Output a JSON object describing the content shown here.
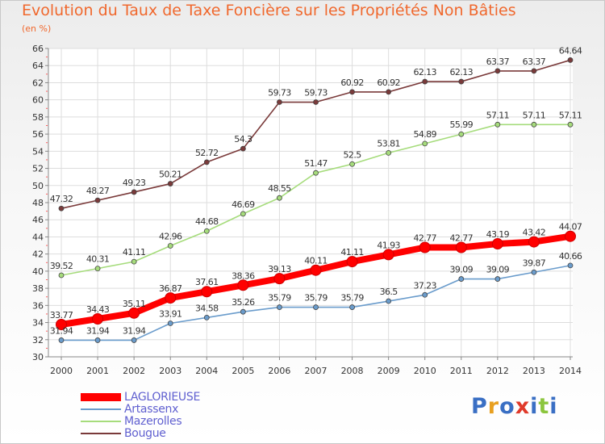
{
  "title": "Evolution du Taux de Taxe Foncière sur les Propriétés Non Bâties",
  "unit_label": "(en %)",
  "logo": {
    "text": "Proxiti",
    "colors": [
      "#3a6fc4",
      "#e8a020",
      "#3a6fc4",
      "#e03a2a",
      "#3a6fc4",
      "#8cc63e",
      "#3a6fc4"
    ]
  },
  "chart_data": {
    "type": "line",
    "title": "Evolution du Taux de Taxe Foncière sur les Propriétés Non Bâties",
    "ylabel": "(en %)",
    "xlabel": "",
    "x": [
      "2000",
      "2001",
      "2002",
      "2003",
      "2004",
      "2005",
      "2006",
      "2007",
      "2008",
      "2009",
      "2010",
      "2011",
      "2012",
      "2013",
      "2014"
    ],
    "ylim": [
      30,
      66
    ],
    "ytick_step": 2,
    "grid": true,
    "legend": "bottom-left",
    "series": [
      {
        "name": "LAGLORIEUSE",
        "color": "#ff0000",
        "emphasis": true,
        "values": [
          33.77,
          34.43,
          35.11,
          36.87,
          37.61,
          38.36,
          39.13,
          40.11,
          41.11,
          41.93,
          42.77,
          42.77,
          43.19,
          43.42,
          44.07
        ],
        "labels": [
          "33.77",
          "34.43",
          "35.11",
          "36.87",
          "37.61",
          "38.36",
          "39.13",
          "40.11",
          "41.11",
          "41.93",
          "42.77",
          "42.77",
          "43.19",
          "43.42",
          "44.07"
        ]
      },
      {
        "name": "Artassenx",
        "color": "#6a9ccc",
        "values": [
          31.94,
          31.94,
          31.94,
          33.91,
          34.58,
          35.26,
          35.79,
          35.79,
          35.79,
          36.5,
          37.23,
          39.09,
          39.09,
          39.87,
          40.66
        ],
        "labels": [
          "31.94",
          "31.94",
          "31.94",
          "33.91",
          "34.58",
          "35.26",
          "35.79",
          "35.79",
          "35.79",
          "36.5",
          "37.23",
          "39.09",
          "39.09",
          "39.87",
          "40.66"
        ]
      },
      {
        "name": "Mazerolles",
        "color": "#a6dc7c",
        "values": [
          39.52,
          40.31,
          41.11,
          42.96,
          44.68,
          46.69,
          48.55,
          51.47,
          52.5,
          53.81,
          54.89,
          55.99,
          57.11,
          57.11,
          57.11
        ],
        "labels": [
          "39.52",
          "40.31",
          "41.11",
          "42.96",
          "44.68",
          "46.69",
          "48.55",
          "51.47",
          "52.5",
          "53.81",
          "54.89",
          "55.99",
          "57.11",
          "57.11",
          "57.11"
        ]
      },
      {
        "name": "Bougue",
        "color": "#7a3a3a",
        "values": [
          47.32,
          48.27,
          49.23,
          50.21,
          52.72,
          54.3,
          59.73,
          59.73,
          60.92,
          60.92,
          62.13,
          62.13,
          63.37,
          63.37,
          64.64
        ],
        "labels": [
          "47.32",
          "48.27",
          "49.23",
          "50.21",
          "52.72",
          "54.3",
          "59.73",
          "59.73",
          "60.92",
          "60.92",
          "62.13",
          "62.13",
          "63.37",
          "63.37",
          "64.64"
        ]
      }
    ]
  }
}
